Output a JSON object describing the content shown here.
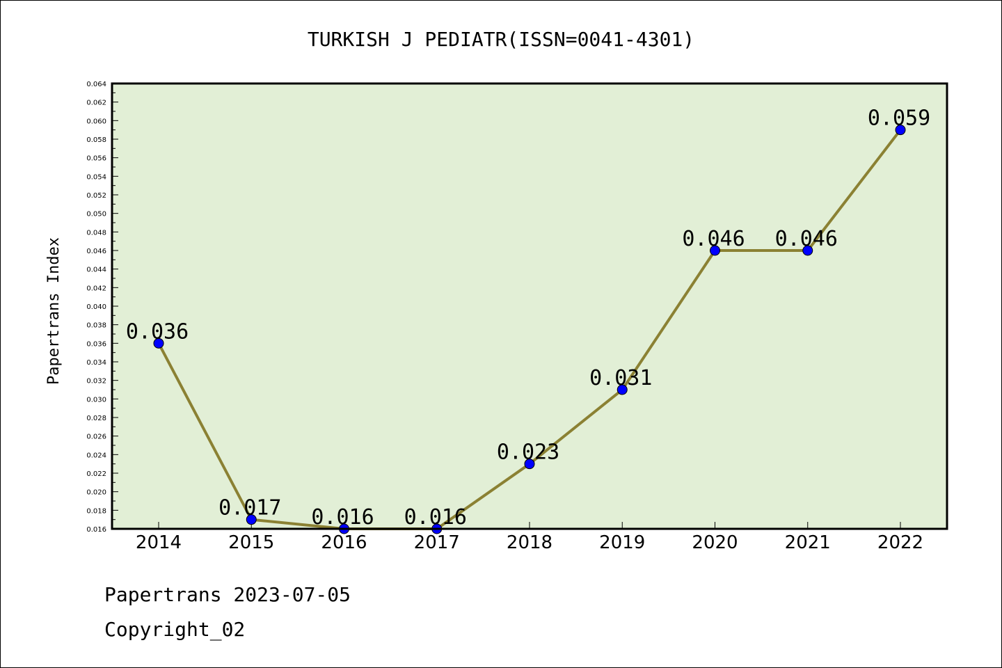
{
  "chart_data": {
    "type": "line",
    "title": "TURKISH J PEDIATR(ISSN=0041-4301)",
    "xlabel": "",
    "ylabel": "Papertrans Index",
    "categories": [
      "2014",
      "2015",
      "2016",
      "2017",
      "2018",
      "2019",
      "2020",
      "2021",
      "2022"
    ],
    "values": [
      0.036,
      0.017,
      0.016,
      0.016,
      0.023,
      0.031,
      0.046,
      0.046,
      0.059
    ],
    "data_labels": [
      "0.036",
      "0.017",
      "0.016",
      "0.016",
      "0.023",
      "0.031",
      "0.046",
      "0.046",
      "0.059"
    ],
    "ylim": [
      0.016,
      0.064
    ],
    "yticks": [
      "0.016",
      "0.018",
      "0.020",
      "0.022",
      "0.024",
      "0.026",
      "0.028",
      "0.030",
      "0.032",
      "0.034",
      "0.036",
      "0.038",
      "0.040",
      "0.042",
      "0.044",
      "0.046",
      "0.048",
      "0.050",
      "0.052",
      "0.054",
      "0.056",
      "0.058",
      "0.060",
      "0.062",
      "0.064"
    ],
    "grid": false,
    "colors": {
      "plot_background": "#e2efd6",
      "line": "#8b8133",
      "marker": "#0000ff",
      "axis": "#000000"
    }
  },
  "footer": {
    "line1": "Papertrans 2023-07-05",
    "line2": "Copyright_02"
  }
}
